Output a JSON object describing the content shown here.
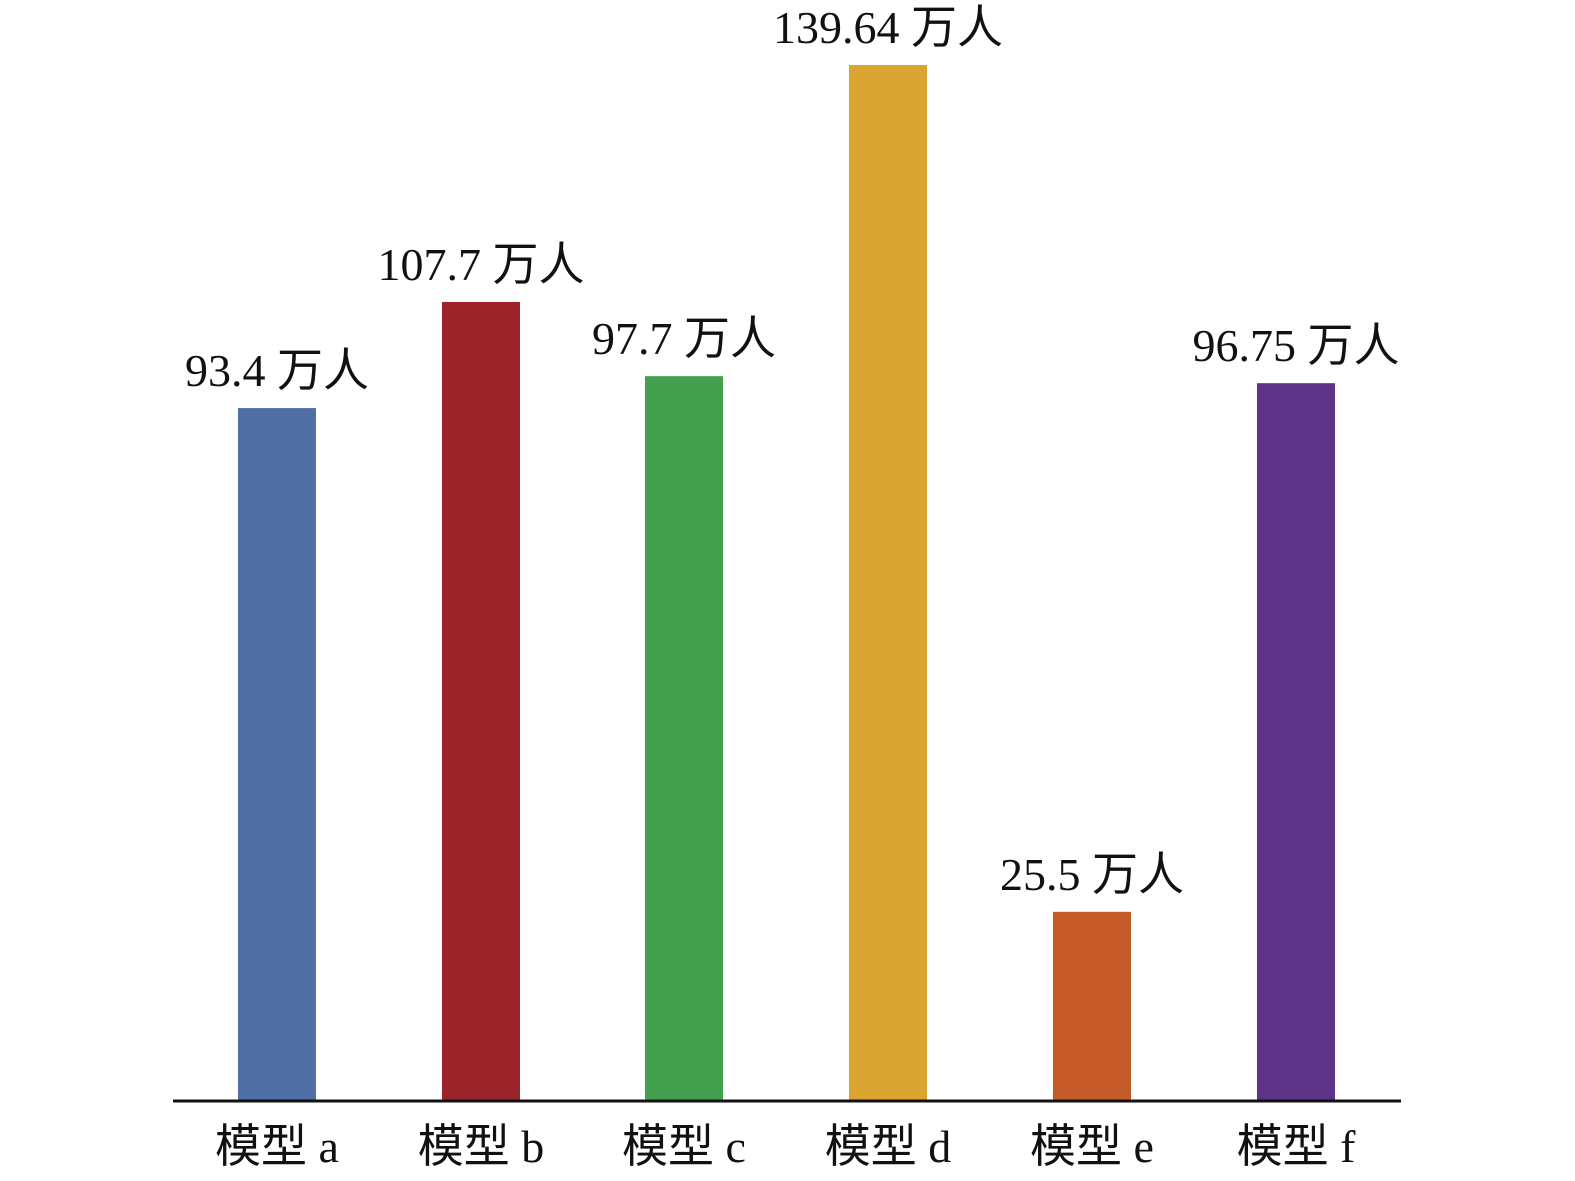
{
  "chart_data": {
    "type": "bar",
    "categories": [
      "模型 a",
      "模型 b",
      "模型 c",
      "模型 d",
      "模型 e",
      "模型 f"
    ],
    "values": [
      93.4,
      107.7,
      97.7,
      139.64,
      25.5,
      96.75
    ],
    "value_labels": [
      "93.4 万人",
      "107.7 万人",
      "97.7 万人",
      "139.64 万人",
      "25.5 万人",
      "96.75 万人"
    ],
    "colors": [
      "#5070a4",
      "#9b242b",
      "#43a04f",
      "#d9a42f",
      "#c45a27",
      "#5c3386"
    ],
    "title": "",
    "xlabel": "",
    "ylabel": "",
    "ylim": [
      0,
      139.64
    ],
    "grid": false,
    "legend": "none"
  }
}
